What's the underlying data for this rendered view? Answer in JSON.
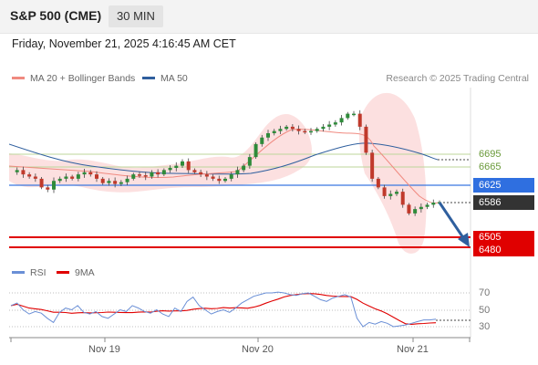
{
  "header": {
    "title": "S&P 500 (CME)",
    "timeframe": "30 MIN"
  },
  "datetime": "Friday, November 21, 2025 4:16:45 AM CET",
  "legend": {
    "ma20": "MA 20 + Bollinger Bands",
    "ma50": "MA 50",
    "rsi": "RSI",
    "ma9": "9MA",
    "colors": {
      "ma20": "#f08a80",
      "ma50": "#2f5f9e",
      "rsi": "#6a8fd6",
      "ma9": "#e00000"
    }
  },
  "copyright": "Research © 2025 Trading Central",
  "levels": {
    "r1": "6695",
    "r2": "6665",
    "pivot": "6625",
    "last": "6586",
    "s1": "6505",
    "s2": "6480"
  },
  "rsi_scale": [
    "70",
    "50",
    "30"
  ],
  "x_labels": [
    "Nov 19",
    "Nov 20",
    "Nov 21"
  ],
  "chart_data": {
    "type": "candlestick",
    "levels": [
      6695,
      6665,
      6625,
      6586,
      6505,
      6480
    ],
    "price_trace": [
      6655,
      6660,
      6650,
      6645,
      6640,
      6620,
      6615,
      6635,
      6640,
      6645,
      6640,
      6650,
      6655,
      6650,
      6640,
      6630,
      6635,
      6628,
      6632,
      6640,
      6650,
      6648,
      6645,
      6655,
      6650,
      6660,
      6665,
      6670,
      6680,
      6660,
      6655,
      6650,
      6645,
      6640,
      6635,
      6640,
      6650,
      6660,
      6670,
      6690,
      6720,
      6735,
      6745,
      6750,
      6755,
      6760,
      6755,
      6750,
      6748,
      6750,
      6755,
      6760,
      6765,
      6770,
      6780,
      6790,
      6790,
      6760,
      6700,
      6640,
      6620,
      6600,
      6605,
      6610,
      6580,
      6560,
      6570,
      6575,
      6580,
      6585,
      6586
    ],
    "rsi_trace": [
      55,
      58,
      50,
      45,
      48,
      46,
      40,
      35,
      47,
      52,
      50,
      55,
      47,
      45,
      48,
      42,
      40,
      45,
      50,
      48,
      55,
      52,
      48,
      46,
      50,
      45,
      42,
      52,
      48,
      60,
      65,
      55,
      50,
      45,
      48,
      50,
      47,
      52,
      58,
      62,
      66,
      68,
      70,
      70,
      71,
      70,
      68,
      67,
      69,
      70,
      66,
      62,
      60,
      64,
      66,
      68,
      65,
      40,
      30,
      35,
      33,
      36,
      34,
      30,
      31,
      32,
      34,
      36,
      38,
      38,
      39
    ],
    "rsi_levels": [
      70,
      50,
      30
    ]
  }
}
